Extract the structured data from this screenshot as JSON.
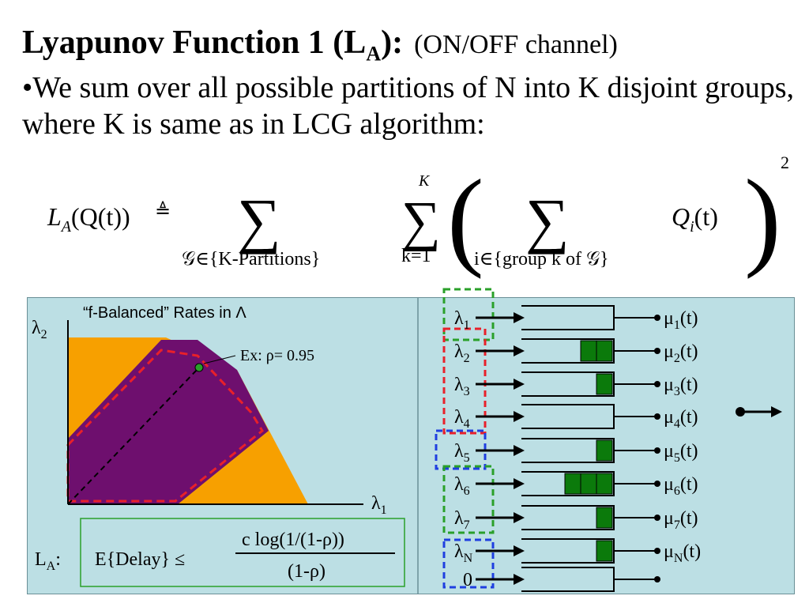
{
  "title": {
    "main": "Lyapunov Function 1 (L",
    "subscript": "A",
    "close": "):",
    "note": "(ON/OFF channel)"
  },
  "bullet": "•We sum over all possible partitions of N into K disjoint groups, where K is same as in LCG algorithm:",
  "formula": {
    "lhs_main": "L",
    "lhs_sub": "A",
    "lhs_arg": "(Q(t))",
    "defeq": "≜",
    "sum_symbol": "∑",
    "outer_sum_below": "𝒢∈{K-Partitions}",
    "middle_sum_top": "K",
    "middle_sum_below": "k=1",
    "inner_sum_below": "i∈{group k of 𝒢}",
    "term_main": "Q",
    "term_sub": "i",
    "term_arg": "(t)",
    "exponent": "2"
  },
  "left_plot": {
    "title": "“f-Balanced” Rates in Λ",
    "y_axis": "λ",
    "y_axis_sub": "2",
    "x_axis": "λ",
    "x_axis_sub": "1",
    "example": "Ex: ρ= 0.95",
    "colors": {
      "outer_region": "#f7a000",
      "inner_region": "#6e0f6e",
      "boundary": "#e8202a",
      "dot": "#2aa02a"
    }
  },
  "delay_box": {
    "label": "L",
    "label_sub": "A",
    "label_colon": ":",
    "lhs": "E{Delay} ≤",
    "numerator": "c log(1/(1-ρ))",
    "denominator": "(1-ρ)"
  },
  "queues": {
    "rows": [
      {
        "in": "λ",
        "in_sub": "1",
        "out": "μ",
        "out_sub": "1",
        "out_arg": "(t)",
        "packets": 0
      },
      {
        "in": "λ",
        "in_sub": "2",
        "out": "μ",
        "out_sub": "2",
        "out_arg": "(t)",
        "packets": 2
      },
      {
        "in": "λ",
        "in_sub": "3",
        "out": "μ",
        "out_sub": "3",
        "out_arg": "(t)",
        "packets": 1
      },
      {
        "in": "λ",
        "in_sub": "4",
        "out": "μ",
        "out_sub": "4",
        "out_arg": "(t)",
        "packets": 0
      },
      {
        "in": "λ",
        "in_sub": "5",
        "out": "μ",
        "out_sub": "5",
        "out_arg": "(t)",
        "packets": 1
      },
      {
        "in": "λ",
        "in_sub": "6",
        "out": "μ",
        "out_sub": "6",
        "out_arg": "(t)",
        "packets": 3
      },
      {
        "in": "λ",
        "in_sub": "7",
        "out": "μ",
        "out_sub": "7",
        "out_arg": "(t)",
        "packets": 1
      },
      {
        "in": "λ",
        "in_sub": "N",
        "out": "μ",
        "out_sub": "N",
        "out_arg": "(t)",
        "packets": 1
      }
    ],
    "extra_in": "0",
    "group_colors": [
      "#2aa02a",
      "#e8202a",
      "#1f3fe0",
      "#2aa02a",
      "#1f3fe0"
    ],
    "packet_color": "#0b7a0b"
  }
}
